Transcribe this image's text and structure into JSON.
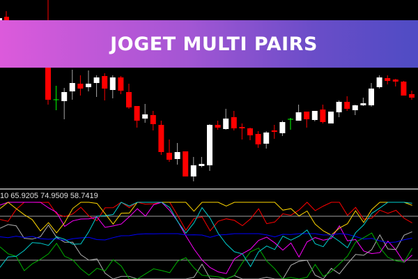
{
  "banner": {
    "title": "JOGET MULTI PAIRS"
  },
  "indicator": {
    "values_text": "10 65.9205 74.9509 58.7419"
  },
  "colors": {
    "bull": "#ffffff",
    "bear": "#ff0000",
    "doji": "#00ff00",
    "banner_start": "#dc5adb",
    "banner_end": "#4f4cc4",
    "level_lines": "#a0a0a0"
  },
  "chart_data": {
    "type": "candlestick",
    "note_units": "relative price levels (no price axis shown)",
    "candles": [
      {
        "o": 173,
        "h": 270,
        "l": 120,
        "c": 127
      },
      {
        "o": 127,
        "h": 147,
        "l": 112,
        "c": 127
      },
      {
        "o": 125,
        "h": 144,
        "l": 99,
        "c": 138
      },
      {
        "o": 139,
        "h": 170,
        "l": 127,
        "c": 151
      },
      {
        "o": 150,
        "h": 162,
        "l": 133,
        "c": 143
      },
      {
        "o": 145,
        "h": 169,
        "l": 139,
        "c": 150
      },
      {
        "o": 151,
        "h": 162,
        "l": 131,
        "c": 159
      },
      {
        "o": 161,
        "h": 165,
        "l": 126,
        "c": 143
      },
      {
        "o": 141,
        "h": 162,
        "l": 129,
        "c": 159
      },
      {
        "o": 159,
        "h": 161,
        "l": 135,
        "c": 140
      },
      {
        "o": 138,
        "h": 150,
        "l": 114,
        "c": 116
      },
      {
        "o": 118,
        "h": 118,
        "l": 87,
        "c": 97
      },
      {
        "o": 100,
        "h": 121,
        "l": 94,
        "c": 106
      },
      {
        "o": 105,
        "h": 111,
        "l": 83,
        "c": 92
      },
      {
        "o": 91,
        "h": 97,
        "l": 48,
        "c": 52
      },
      {
        "o": 51,
        "h": 70,
        "l": 38,
        "c": 41
      },
      {
        "o": 42,
        "h": 65,
        "l": 34,
        "c": 52
      },
      {
        "o": 53,
        "h": 53,
        "l": 17,
        "c": 17
      },
      {
        "o": 17,
        "h": 45,
        "l": 10,
        "c": 33
      },
      {
        "o": 32,
        "h": 45,
        "l": 30,
        "c": 35
      },
      {
        "o": 33,
        "h": 92,
        "l": 25,
        "c": 91
      },
      {
        "o": 91,
        "h": 97,
        "l": 84,
        "c": 87
      },
      {
        "o": 85,
        "h": 114,
        "l": 84,
        "c": 100
      },
      {
        "o": 102,
        "h": 111,
        "l": 83,
        "c": 86
      },
      {
        "o": 88,
        "h": 93,
        "l": 70,
        "c": 86
      },
      {
        "o": 86,
        "h": 87,
        "l": 69,
        "c": 76
      },
      {
        "o": 78,
        "h": 82,
        "l": 58,
        "c": 63
      },
      {
        "o": 64,
        "h": 82,
        "l": 57,
        "c": 80
      },
      {
        "o": 83,
        "h": 91,
        "l": 71,
        "c": 81
      },
      {
        "o": 79,
        "h": 97,
        "l": 75,
        "c": 95
      },
      {
        "o": 99,
        "h": 101,
        "l": 84,
        "c": 99
      },
      {
        "o": 97,
        "h": 120,
        "l": 97,
        "c": 109
      },
      {
        "o": 110,
        "h": 110,
        "l": 87,
        "c": 99
      },
      {
        "o": 98,
        "h": 111,
        "l": 96,
        "c": 111
      },
      {
        "o": 113,
        "h": 120,
        "l": 93,
        "c": 95
      },
      {
        "o": 93,
        "h": 110,
        "l": 93,
        "c": 110
      },
      {
        "o": 109,
        "h": 126,
        "l": 102,
        "c": 124
      },
      {
        "o": 124,
        "h": 132,
        "l": 111,
        "c": 114
      },
      {
        "o": 112,
        "h": 120,
        "l": 105,
        "c": 119
      },
      {
        "o": 119,
        "h": 130,
        "l": 118,
        "c": 122
      },
      {
        "o": 119,
        "h": 151,
        "l": 117,
        "c": 143
      },
      {
        "o": 145,
        "h": 162,
        "l": 143,
        "c": 159
      },
      {
        "o": 158,
        "h": 162,
        "l": 149,
        "c": 154
      },
      {
        "o": 156,
        "h": 157,
        "l": 146,
        "c": 153
      },
      {
        "o": 153,
        "h": 154,
        "l": 133,
        "c": 133
      },
      {
        "o": 135,
        "h": 140,
        "l": 127,
        "c": 130
      }
    ],
    "indicator_levels": [
      "upper",
      "lower"
    ],
    "indicator_series_colors": [
      "#ff0000",
      "#ff00ff",
      "#ffd700",
      "#b0b0b0",
      "#0000ff",
      "#00b000",
      "#00d0d0"
    ]
  }
}
